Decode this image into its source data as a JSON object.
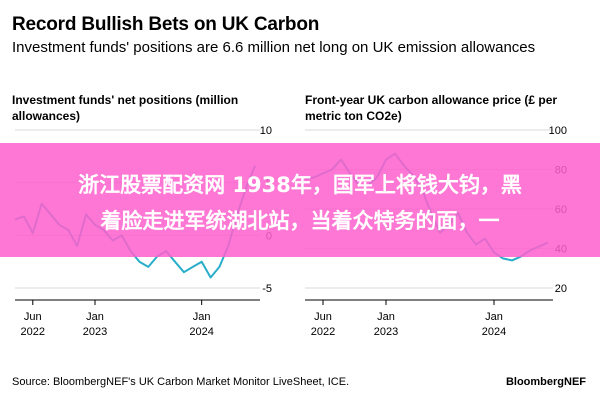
{
  "header": {
    "title": "Record Bullish Bets on UK Carbon",
    "subtitle": "Investment funds' positions are 6.6 million net long on UK emission allowances"
  },
  "footer": {
    "source": "Source: BloombergNEF's UK Carbon Market Monitor LiveSheet, ICE.",
    "brand": "BloombergNEF"
  },
  "overlay": {
    "line1": "浙江股票配资网 1938年，国军上将钱大钧，黑",
    "line2": "着脸走进军统湖北站，当着众特务的面，一"
  },
  "colors": {
    "series": "#29aeca",
    "axis": "#000000",
    "grid": "#d9d9d9",
    "overlay": "#ff5fcd"
  },
  "chart_data": [
    {
      "type": "line",
      "title": "Investment funds' net positions (million allowances)",
      "x_tick_labels": [
        [
          "Jun",
          "2022"
        ],
        [
          "Jan",
          "2023"
        ],
        [
          "Jan",
          "2024"
        ]
      ],
      "x_ticks": [
        "2022-06",
        "2023-01",
        "2024-01"
      ],
      "y_tick_labels": [
        "10",
        "5",
        "0",
        "-5"
      ],
      "ylim": [
        -5,
        10
      ],
      "xlim": [
        "2022-04",
        "2024-07"
      ],
      "y_axis_side": "right",
      "series": [
        {
          "x": [
            "2022-04",
            "2022-05",
            "2022-06",
            "2022-07",
            "2022-08",
            "2022-09",
            "2022-10",
            "2022-11",
            "2022-12",
            "2023-01",
            "2023-02",
            "2023-03",
            "2023-04",
            "2023-05",
            "2023-06",
            "2023-07",
            "2023-08",
            "2023-09",
            "2023-10",
            "2023-11",
            "2023-12",
            "2024-01",
            "2024-02",
            "2024-03",
            "2024-04",
            "2024-05",
            "2024-06",
            "2024-07"
          ],
          "y": [
            1.5,
            1.8,
            0.2,
            3.0,
            2.0,
            1.0,
            0.5,
            -1.0,
            2.0,
            1.0,
            0.5,
            -0.5,
            0.0,
            -1.5,
            -2.5,
            -3.0,
            -2.0,
            -1.5,
            -2.5,
            -3.5,
            -3.0,
            -2.5,
            -4.0,
            -3.0,
            -1.0,
            2.0,
            4.5,
            6.6
          ]
        }
      ]
    },
    {
      "type": "line",
      "title": "Front-year UK carbon allowance price (£ per metric ton CO2e)",
      "x_tick_labels": [
        [
          "Jun",
          "2022"
        ],
        [
          "Jan",
          "2023"
        ],
        [
          "Jan",
          "2024"
        ]
      ],
      "x_ticks": [
        "2022-06",
        "2023-01",
        "2024-01"
      ],
      "y_tick_labels": [
        "100",
        "80",
        "60",
        "40",
        "20"
      ],
      "ylim": [
        20,
        100
      ],
      "xlim": [
        "2022-04",
        "2024-07"
      ],
      "y_axis_side": "right",
      "series": [
        {
          "x": [
            "2022-04",
            "2022-05",
            "2022-06",
            "2022-07",
            "2022-08",
            "2022-09",
            "2022-10",
            "2022-11",
            "2022-12",
            "2023-01",
            "2023-02",
            "2023-03",
            "2023-04",
            "2023-05",
            "2023-06",
            "2023-07",
            "2023-08",
            "2023-09",
            "2023-10",
            "2023-11",
            "2023-12",
            "2024-01",
            "2024-02",
            "2024-03",
            "2024-04",
            "2024-05",
            "2024-06",
            "2024-07"
          ],
          "y": [
            75,
            76,
            78,
            80,
            85,
            78,
            72,
            72,
            76,
            85,
            88,
            82,
            77,
            70,
            58,
            48,
            52,
            58,
            48,
            42,
            45,
            38,
            35,
            34,
            36,
            39,
            41,
            43
          ]
        }
      ]
    }
  ]
}
